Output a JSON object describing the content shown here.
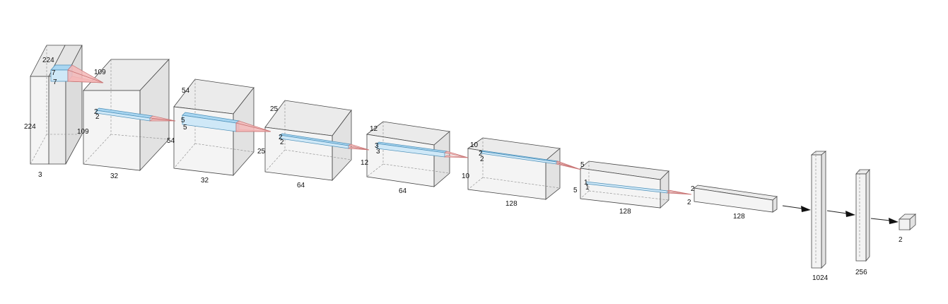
{
  "layers": [
    {
      "id": "input",
      "labels": {
        "height": "224",
        "width": "224",
        "depth": "3"
      }
    },
    {
      "id": "conv1",
      "labels": {
        "height": "109",
        "width": "109",
        "depth": "32"
      }
    },
    {
      "id": "conv2",
      "labels": {
        "height": "54",
        "width": "54",
        "depth": "32"
      }
    },
    {
      "id": "conv3",
      "labels": {
        "height": "25",
        "width": "25",
        "depth": "64"
      }
    },
    {
      "id": "conv4",
      "labels": {
        "height": "12",
        "width": "12",
        "depth": "64"
      }
    },
    {
      "id": "conv5",
      "labels": {
        "height": "10",
        "width": "10",
        "depth": "128"
      }
    },
    {
      "id": "conv6",
      "labels": {
        "height": "5",
        "width": "5",
        "depth": "128"
      }
    },
    {
      "id": "conv7",
      "labels": {
        "height": "2",
        "width": "2",
        "depth": "128"
      }
    },
    {
      "id": "dense1",
      "labels": {
        "depth": "1024"
      }
    },
    {
      "id": "dense2",
      "labels": {
        "depth": "256"
      }
    },
    {
      "id": "output",
      "labels": {
        "depth": "2"
      }
    }
  ],
  "kernels": [
    {
      "id": "k1",
      "size_a": "7",
      "size_b": "7"
    },
    {
      "id": "k2",
      "size_a": "2",
      "size_b": "2"
    },
    {
      "id": "k3",
      "size_a": "5",
      "size_b": "5"
    },
    {
      "id": "k4",
      "size_a": "2",
      "size_b": "2"
    },
    {
      "id": "k5",
      "size_a": "3",
      "size_b": "3"
    },
    {
      "id": "k6",
      "size_a": "2",
      "size_b": "2"
    },
    {
      "id": "k7",
      "size_a": "1",
      "size_b": "1"
    }
  ],
  "colors": {
    "box_face": "#f2f2f2",
    "box_side": "#e4e4e4",
    "box_top": "#ebebeb",
    "kernel": "#cfe8f7",
    "cone": "#f5b8b8",
    "edge": "#444444"
  }
}
